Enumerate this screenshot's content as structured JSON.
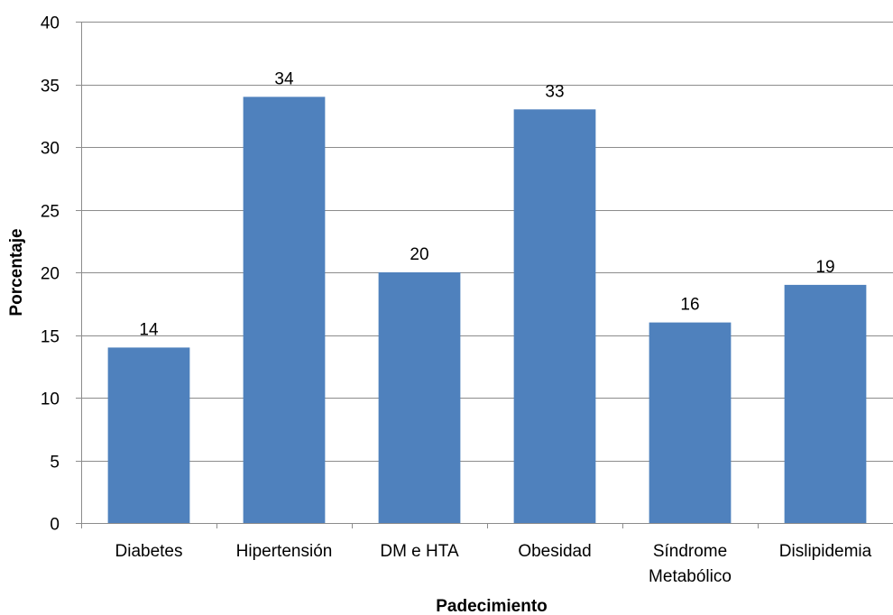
{
  "chart_data": {
    "type": "bar",
    "categories": [
      "Diabetes",
      "Hipertensión",
      "DM e HTA",
      "Obesidad",
      "Síndrome Metabólico",
      "Dislipidemia"
    ],
    "category_lines": [
      [
        "Diabetes"
      ],
      [
        "Hipertensión"
      ],
      [
        "DM e HTA"
      ],
      [
        "Obesidad"
      ],
      [
        "Síndrome",
        "Metabólico"
      ],
      [
        "Dislipidemia"
      ]
    ],
    "values": [
      14,
      34,
      20,
      33,
      16,
      19
    ],
    "title": "",
    "xlabel": "Padecimiento",
    "ylabel": "Porcentaje",
    "ylim": [
      0,
      40
    ],
    "yticks": [
      0,
      5,
      10,
      15,
      20,
      25,
      30,
      35,
      40
    ],
    "grid": true,
    "data_labels": true,
    "legend": "none",
    "bar_color": "#4f81bd"
  }
}
